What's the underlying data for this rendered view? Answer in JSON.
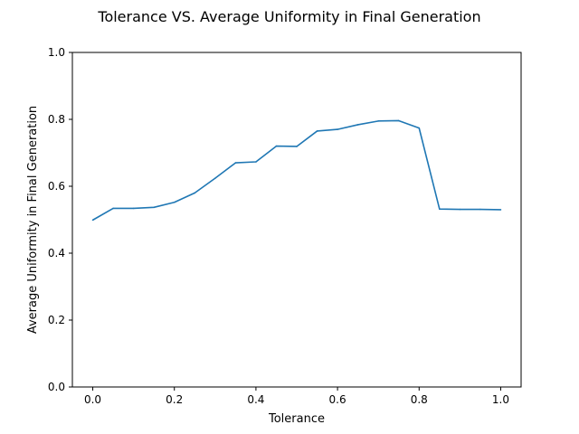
{
  "chart_data": {
    "type": "line",
    "title": "Tolerance VS. Average Uniformity in Final Generation",
    "xlabel": "Tolerance",
    "ylabel": "Average Uniformity in Final Generation",
    "xlim": [
      -0.05,
      1.05
    ],
    "ylim": [
      0.0,
      1.0
    ],
    "xticks": [
      "0.0",
      "0.2",
      "0.4",
      "0.6",
      "0.8",
      "1.0"
    ],
    "yticks": [
      "0.0",
      "0.2",
      "0.4",
      "0.6",
      "0.8",
      "1.0"
    ],
    "grid": false,
    "series": [
      {
        "color": "#1f77b4",
        "x": [
          0.0,
          0.05,
          0.1,
          0.15,
          0.2,
          0.25,
          0.3,
          0.35,
          0.4,
          0.45,
          0.5,
          0.55,
          0.6,
          0.65,
          0.7,
          0.75,
          0.8,
          0.85,
          0.9,
          0.95,
          1.0
        ],
        "y": [
          0.499,
          0.534,
          0.534,
          0.537,
          0.552,
          0.58,
          0.624,
          0.67,
          0.673,
          0.72,
          0.719,
          0.765,
          0.77,
          0.784,
          0.795,
          0.796,
          0.774,
          0.532,
          0.531,
          0.531,
          0.53
        ]
      }
    ]
  }
}
